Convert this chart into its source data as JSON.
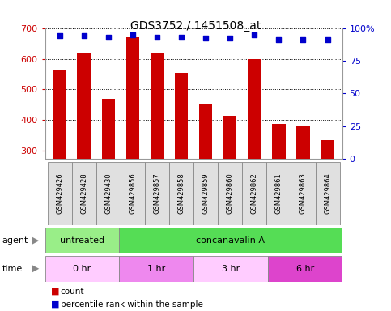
{
  "title": "GDS3752 / 1451508_at",
  "samples": [
    "GSM429426",
    "GSM429428",
    "GSM429430",
    "GSM429856",
    "GSM429857",
    "GSM429858",
    "GSM429859",
    "GSM429860",
    "GSM429862",
    "GSM429861",
    "GSM429863",
    "GSM429864"
  ],
  "counts": [
    565,
    620,
    470,
    670,
    620,
    555,
    452,
    415,
    600,
    388,
    380,
    335
  ],
  "percentile_ranks": [
    94,
    94,
    93,
    95,
    93,
    93,
    92,
    92,
    95,
    91,
    91,
    91
  ],
  "bar_color": "#cc0000",
  "dot_color": "#0000cc",
  "ymin": 275,
  "ymax": 700,
  "yticks": [
    300,
    400,
    500,
    600,
    700
  ],
  "y2min": 0,
  "y2max": 100,
  "y2ticks": [
    0,
    25,
    50,
    75,
    100
  ],
  "y2tick_labels": [
    "0",
    "25",
    "50",
    "75",
    "100%"
  ],
  "agent_labels": [
    {
      "text": "untreated",
      "start": 0,
      "end": 3,
      "color": "#99ee88"
    },
    {
      "text": "concanavalin A",
      "start": 3,
      "end": 12,
      "color": "#55dd55"
    }
  ],
  "time_labels": [
    {
      "text": "0 hr",
      "start": 0,
      "end": 3,
      "color": "#ffccff"
    },
    {
      "text": "1 hr",
      "start": 3,
      "end": 6,
      "color": "#ee88ee"
    },
    {
      "text": "3 hr",
      "start": 6,
      "end": 9,
      "color": "#ffccff"
    },
    {
      "text": "6 hr",
      "start": 9,
      "end": 12,
      "color": "#dd44cc"
    }
  ],
  "legend_count_color": "#cc0000",
  "legend_dot_color": "#0000cc",
  "bg_color": "#ffffff",
  "tick_label_color_left": "#cc0000",
  "tick_label_color_right": "#0000cc"
}
